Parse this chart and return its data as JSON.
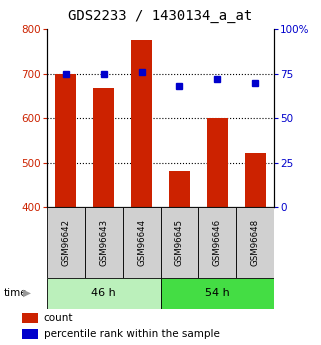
{
  "title": "GDS2233 / 1430134_a_at",
  "samples": [
    "GSM96642",
    "GSM96643",
    "GSM96644",
    "GSM96645",
    "GSM96646",
    "GSM96648"
  ],
  "counts": [
    700,
    668,
    775,
    482,
    600,
    522
  ],
  "percentiles": [
    75,
    75,
    76,
    68,
    72,
    70
  ],
  "groups": [
    {
      "label": "46 h",
      "color_light": "#b8f0b8",
      "color_dark": "#55dd55"
    },
    {
      "label": "54 h",
      "color_light": "#55dd55",
      "color_dark": "#33cc33"
    }
  ],
  "group_split": 3,
  "ylim_left": [
    400,
    800
  ],
  "ylim_right": [
    0,
    100
  ],
  "yticks_left": [
    400,
    500,
    600,
    700,
    800
  ],
  "yticks_right": [
    0,
    25,
    50,
    75,
    100
  ],
  "bar_color": "#cc2200",
  "dot_color": "#0000cc",
  "bar_width": 0.55,
  "bg_color": "#ffffff",
  "title_fontsize": 10,
  "axis_label_color_left": "#cc2200",
  "axis_label_color_right": "#0000cc",
  "group0_color": "#bbf0bb",
  "group1_color": "#44dd44"
}
